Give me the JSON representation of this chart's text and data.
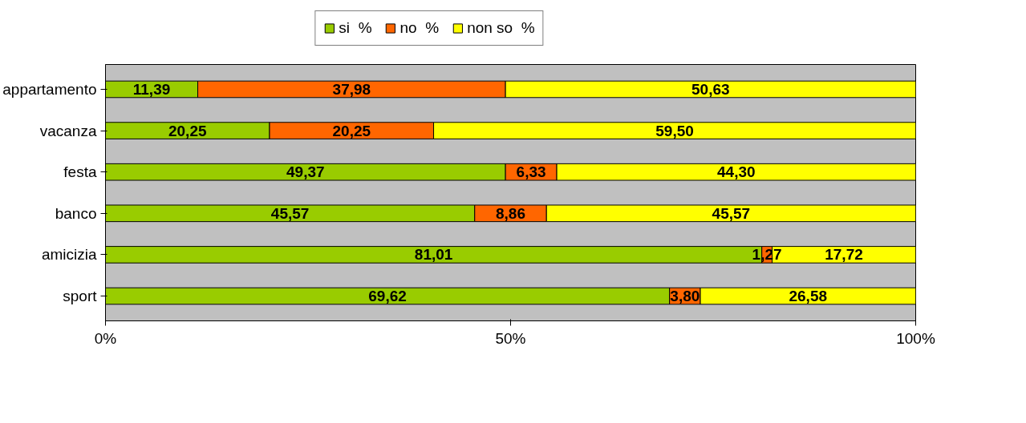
{
  "chart_data": {
    "type": "bar",
    "orientation": "horizontal",
    "stacked": true,
    "categories": [
      "appartamento",
      "vacanza",
      "festa",
      "banco",
      "amicizia",
      "sport"
    ],
    "series": [
      {
        "name": "si  %",
        "color": "#99cc00",
        "values": [
          11.39,
          20.25,
          49.37,
          45.57,
          81.01,
          69.62
        ],
        "value_labels": [
          "11,39",
          "20,25",
          "49,37",
          "45,57",
          "81,01",
          "69,62"
        ]
      },
      {
        "name": "no  %",
        "color": "#ff6600",
        "values": [
          37.98,
          20.25,
          6.33,
          8.86,
          1.27,
          3.8
        ],
        "value_labels": [
          "37,98",
          "20,25",
          "6,33",
          "8,86",
          "1,27",
          "3,80"
        ]
      },
      {
        "name": "non so  %",
        "color": "#ffff00",
        "values": [
          50.63,
          59.5,
          44.3,
          45.57,
          17.72,
          26.58
        ],
        "value_labels": [
          "50,63",
          "59,50",
          "44,30",
          "45,57",
          "17,72",
          "26,58"
        ]
      }
    ],
    "xlim": [
      0,
      100
    ],
    "xticks": [
      {
        "value": 0,
        "label": "0%"
      },
      {
        "value": 50,
        "label": "50%"
      },
      {
        "value": 100,
        "label": "100%"
      }
    ],
    "grid": false,
    "legend": "top"
  }
}
